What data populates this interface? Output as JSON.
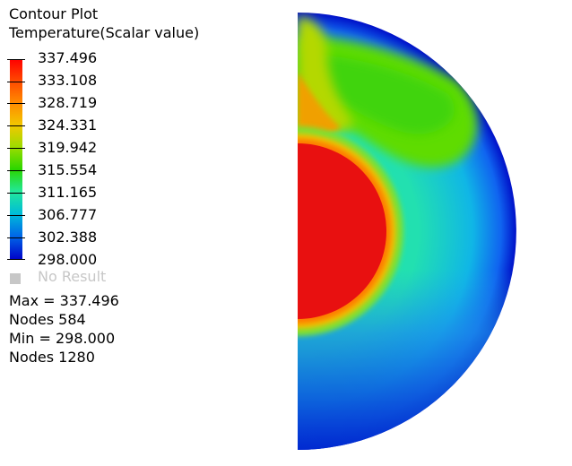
{
  "title": "Contour Plot",
  "subtitle": "Temperature(Scalar value)",
  "legend": {
    "values": [
      "337.496",
      "333.108",
      "328.719",
      "324.331",
      "319.942",
      "315.554",
      "311.165",
      "306.777",
      "302.388",
      "298.000"
    ],
    "no_result_label": "No Result",
    "colors": [
      "#ff0000",
      "#ff8c00",
      "#f2c800",
      "#2ad600",
      "#22e89a",
      "#00bcd8",
      "#0068e8",
      "#0000c8"
    ]
  },
  "stats": {
    "max": "Max = 337.496",
    "max_nodes": "Nodes 584",
    "min": "Min = 298.000",
    "min_nodes": "Nodes 1280"
  }
}
